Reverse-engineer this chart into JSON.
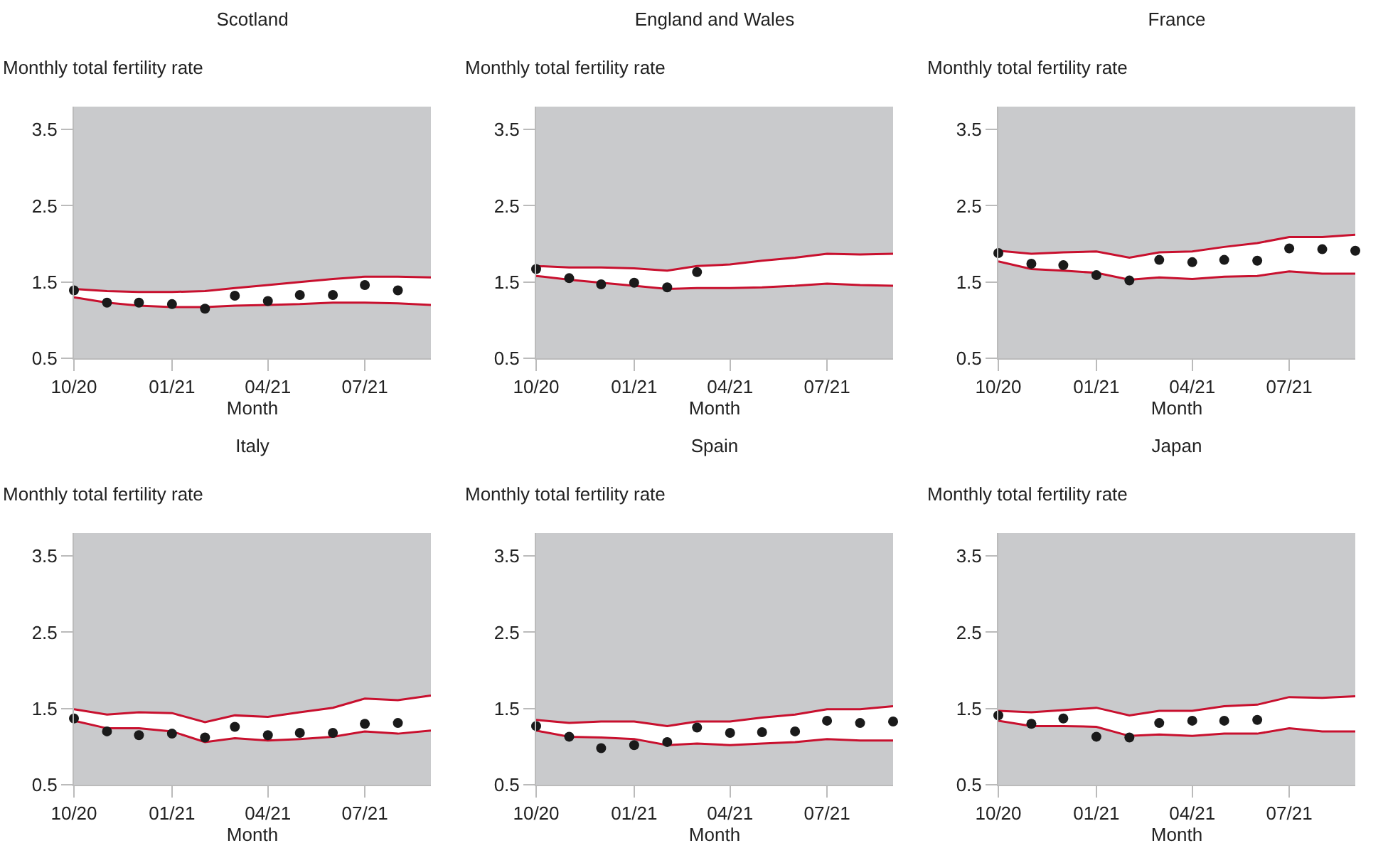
{
  "chart_data": [
    {
      "type": "scatter",
      "title": "Scotland",
      "ylabel": "Monthly total fertility rate",
      "xlabel": "Month",
      "x": [
        "2020-10",
        "2020-11",
        "2020-12",
        "2021-01",
        "2021-02",
        "2021-03",
        "2021-04",
        "2021-05",
        "2021-06",
        "2021-07",
        "2021-08",
        "2021-09"
      ],
      "xlim": [
        "2020-10",
        "2021-09"
      ],
      "xticks": [
        {
          "value": "2020-10",
          "label": "10/20"
        },
        {
          "value": "2021-01",
          "label": "01/21"
        },
        {
          "value": "2021-04",
          "label": "04/21"
        },
        {
          "value": "2021-07",
          "label": "07/21"
        }
      ],
      "ylim": [
        0.5,
        3.8
      ],
      "yticks": [
        0.5,
        1.5,
        2.5,
        3.5
      ],
      "grid": false,
      "series": [
        {
          "color": "#1a1a1a",
          "marker": "circle",
          "values": [
            1.39,
            1.23,
            1.23,
            1.21,
            1.15,
            1.32,
            1.25,
            1.33,
            1.33,
            1.46,
            1.39,
            null
          ],
          "lower": [
            1.3,
            1.23,
            1.19,
            1.17,
            1.17,
            1.19,
            1.2,
            1.21,
            1.23,
            1.23,
            1.22,
            1.2
          ],
          "upper": [
            1.41,
            1.38,
            1.37,
            1.37,
            1.38,
            1.42,
            1.46,
            1.5,
            1.54,
            1.57,
            1.57,
            1.56
          ]
        },
        {
          "type": "line",
          "color": "#c8102e",
          "values": [
            1.3,
            1.23,
            1.19,
            1.17,
            1.17,
            1.19,
            1.2,
            1.21,
            1.23,
            1.23,
            1.22,
            1.2
          ]
        },
        {
          "type": "line",
          "color": "#c8102e",
          "values": [
            1.41,
            1.38,
            1.37,
            1.37,
            1.38,
            1.42,
            1.46,
            1.5,
            1.54,
            1.57,
            1.57,
            1.56
          ]
        }
      ]
    },
    {
      "type": "scatter",
      "title": "England and Wales",
      "ylabel": "Monthly total fertility rate",
      "xlabel": "Month",
      "x": [
        "2020-10",
        "2020-11",
        "2020-12",
        "2021-01",
        "2021-02",
        "2021-03",
        "2021-04",
        "2021-05",
        "2021-06",
        "2021-07",
        "2021-08",
        "2021-09"
      ],
      "xlim": [
        "2020-10",
        "2021-09"
      ],
      "xticks": [
        {
          "value": "2020-10",
          "label": "10/20"
        },
        {
          "value": "2021-01",
          "label": "01/21"
        },
        {
          "value": "2021-04",
          "label": "04/21"
        },
        {
          "value": "2021-07",
          "label": "07/21"
        }
      ],
      "ylim": [
        0.5,
        3.8
      ],
      "yticks": [
        0.5,
        1.5,
        2.5,
        3.5
      ],
      "grid": false,
      "series": [
        {
          "color": "#1a1a1a",
          "marker": "circle",
          "values": [
            1.67,
            1.55,
            1.47,
            1.49,
            1.43,
            1.63,
            null,
            null,
            null,
            null,
            null,
            null
          ],
          "lower": [
            1.58,
            1.53,
            1.49,
            1.45,
            1.41,
            1.42,
            1.42,
            1.43,
            1.45,
            1.48,
            1.46,
            1.45
          ],
          "upper": [
            1.71,
            1.69,
            1.69,
            1.68,
            1.65,
            1.71,
            1.73,
            1.78,
            1.82,
            1.87,
            1.86,
            1.87
          ]
        },
        {
          "type": "line",
          "color": "#c8102e",
          "values": [
            1.58,
            1.53,
            1.49,
            1.45,
            1.41,
            1.42,
            1.42,
            1.43,
            1.45,
            1.48,
            1.46,
            1.45
          ]
        },
        {
          "type": "line",
          "color": "#c8102e",
          "values": [
            1.71,
            1.69,
            1.69,
            1.68,
            1.65,
            1.71,
            1.73,
            1.78,
            1.82,
            1.87,
            1.86,
            1.87
          ]
        }
      ]
    },
    {
      "type": "scatter",
      "title": "France",
      "ylabel": "Monthly total fertility rate",
      "xlabel": "Month",
      "x": [
        "2020-10",
        "2020-11",
        "2020-12",
        "2021-01",
        "2021-02",
        "2021-03",
        "2021-04",
        "2021-05",
        "2021-06",
        "2021-07",
        "2021-08",
        "2021-09"
      ],
      "xlim": [
        "2020-10",
        "2021-09"
      ],
      "xticks": [
        {
          "value": "2020-10",
          "label": "10/20"
        },
        {
          "value": "2021-01",
          "label": "01/21"
        },
        {
          "value": "2021-04",
          "label": "04/21"
        },
        {
          "value": "2021-07",
          "label": "07/21"
        }
      ],
      "ylim": [
        0.5,
        3.8
      ],
      "yticks": [
        0.5,
        1.5,
        2.5,
        3.5
      ],
      "grid": false,
      "series": [
        {
          "color": "#1a1a1a",
          "marker": "circle",
          "values": [
            1.88,
            1.74,
            1.72,
            1.59,
            1.52,
            1.79,
            1.76,
            1.79,
            1.78,
            1.94,
            1.93,
            1.91
          ],
          "lower": [
            1.77,
            1.67,
            1.65,
            1.62,
            1.53,
            1.56,
            1.54,
            1.57,
            1.58,
            1.64,
            1.61,
            1.61
          ],
          "upper": [
            1.91,
            1.87,
            1.89,
            1.9,
            1.82,
            1.89,
            1.9,
            1.96,
            2.01,
            2.09,
            2.09,
            2.12
          ]
        },
        {
          "type": "line",
          "color": "#c8102e",
          "values": [
            1.77,
            1.67,
            1.65,
            1.62,
            1.53,
            1.56,
            1.54,
            1.57,
            1.58,
            1.64,
            1.61,
            1.61
          ]
        },
        {
          "type": "line",
          "color": "#c8102e",
          "values": [
            1.91,
            1.87,
            1.89,
            1.9,
            1.82,
            1.89,
            1.9,
            1.96,
            2.01,
            2.09,
            2.09,
            2.12
          ]
        }
      ]
    },
    {
      "type": "scatter",
      "title": "Italy",
      "ylabel": "Monthly total fertility rate",
      "xlabel": "Month",
      "x": [
        "2020-10",
        "2020-11",
        "2020-12",
        "2021-01",
        "2021-02",
        "2021-03",
        "2021-04",
        "2021-05",
        "2021-06",
        "2021-07",
        "2021-08",
        "2021-09"
      ],
      "xlim": [
        "2020-10",
        "2021-09"
      ],
      "xticks": [
        {
          "value": "2020-10",
          "label": "10/20"
        },
        {
          "value": "2021-01",
          "label": "01/21"
        },
        {
          "value": "2021-04",
          "label": "04/21"
        },
        {
          "value": "2021-07",
          "label": "07/21"
        }
      ],
      "ylim": [
        0.5,
        3.8
      ],
      "yticks": [
        0.5,
        1.5,
        2.5,
        3.5
      ],
      "grid": false,
      "series": [
        {
          "color": "#1a1a1a",
          "marker": "circle",
          "values": [
            1.37,
            1.2,
            1.15,
            1.17,
            1.12,
            1.26,
            1.15,
            1.18,
            1.18,
            1.3,
            1.31,
            null
          ],
          "lower": [
            1.34,
            1.24,
            1.24,
            1.2,
            1.06,
            1.11,
            1.08,
            1.1,
            1.13,
            1.2,
            1.17,
            1.21
          ],
          "upper": [
            1.49,
            1.42,
            1.45,
            1.44,
            1.32,
            1.41,
            1.39,
            1.45,
            1.51,
            1.63,
            1.61,
            1.67
          ]
        },
        {
          "type": "line",
          "color": "#c8102e",
          "values": [
            1.34,
            1.24,
            1.24,
            1.2,
            1.06,
            1.11,
            1.08,
            1.1,
            1.13,
            1.2,
            1.17,
            1.21
          ]
        },
        {
          "type": "line",
          "color": "#c8102e",
          "values": [
            1.49,
            1.42,
            1.45,
            1.44,
            1.32,
            1.41,
            1.39,
            1.45,
            1.51,
            1.63,
            1.61,
            1.67
          ]
        }
      ]
    },
    {
      "type": "scatter",
      "title": "Spain",
      "ylabel": "Monthly total fertility rate",
      "xlabel": "Month",
      "x": [
        "2020-10",
        "2020-11",
        "2020-12",
        "2021-01",
        "2021-02",
        "2021-03",
        "2021-04",
        "2021-05",
        "2021-06",
        "2021-07",
        "2021-08",
        "2021-09"
      ],
      "xlim": [
        "2020-10",
        "2021-09"
      ],
      "xticks": [
        {
          "value": "2020-10",
          "label": "10/20"
        },
        {
          "value": "2021-01",
          "label": "01/21"
        },
        {
          "value": "2021-04",
          "label": "04/21"
        },
        {
          "value": "2021-07",
          "label": "07/21"
        }
      ],
      "ylim": [
        0.5,
        3.8
      ],
      "yticks": [
        0.5,
        1.5,
        2.5,
        3.5
      ],
      "grid": false,
      "series": [
        {
          "color": "#1a1a1a",
          "marker": "circle",
          "values": [
            1.27,
            1.13,
            0.98,
            1.02,
            1.06,
            1.25,
            1.18,
            1.19,
            1.2,
            1.34,
            1.31,
            1.33
          ],
          "lower": [
            1.21,
            1.13,
            1.12,
            1.1,
            1.02,
            1.04,
            1.02,
            1.04,
            1.06,
            1.1,
            1.08,
            1.08
          ],
          "upper": [
            1.35,
            1.31,
            1.33,
            1.33,
            1.27,
            1.33,
            1.33,
            1.38,
            1.42,
            1.49,
            1.49,
            1.53
          ]
        },
        {
          "type": "line",
          "color": "#c8102e",
          "values": [
            1.21,
            1.13,
            1.12,
            1.1,
            1.02,
            1.04,
            1.02,
            1.04,
            1.06,
            1.1,
            1.08,
            1.08
          ]
        },
        {
          "type": "line",
          "color": "#c8102e",
          "values": [
            1.35,
            1.31,
            1.33,
            1.33,
            1.27,
            1.33,
            1.33,
            1.38,
            1.42,
            1.49,
            1.49,
            1.53
          ]
        }
      ]
    },
    {
      "type": "scatter",
      "title": "Japan",
      "ylabel": "Monthly total fertility rate",
      "xlabel": "Month",
      "x": [
        "2020-10",
        "2020-11",
        "2020-12",
        "2021-01",
        "2021-02",
        "2021-03",
        "2021-04",
        "2021-05",
        "2021-06",
        "2021-07",
        "2021-08",
        "2021-09"
      ],
      "xlim": [
        "2020-10",
        "2021-09"
      ],
      "xticks": [
        {
          "value": "2020-10",
          "label": "10/20"
        },
        {
          "value": "2021-01",
          "label": "01/21"
        },
        {
          "value": "2021-04",
          "label": "04/21"
        },
        {
          "value": "2021-07",
          "label": "07/21"
        }
      ],
      "ylim": [
        0.5,
        3.8
      ],
      "yticks": [
        0.5,
        1.5,
        2.5,
        3.5
      ],
      "grid": false,
      "series": [
        {
          "color": "#1a1a1a",
          "marker": "circle",
          "values": [
            1.41,
            1.3,
            1.37,
            1.13,
            1.12,
            1.31,
            1.34,
            1.34,
            1.35,
            null,
            null,
            null
          ],
          "lower": [
            1.34,
            1.27,
            1.27,
            1.26,
            1.14,
            1.16,
            1.14,
            1.17,
            1.17,
            1.24,
            1.2,
            1.2
          ],
          "upper": [
            1.47,
            1.45,
            1.48,
            1.51,
            1.41,
            1.47,
            1.47,
            1.53,
            1.55,
            1.65,
            1.64,
            1.66
          ]
        },
        {
          "type": "line",
          "color": "#c8102e",
          "values": [
            1.34,
            1.27,
            1.27,
            1.26,
            1.14,
            1.16,
            1.14,
            1.17,
            1.17,
            1.24,
            1.2,
            1.2
          ]
        },
        {
          "type": "line",
          "color": "#c8102e",
          "values": [
            1.47,
            1.45,
            1.48,
            1.51,
            1.41,
            1.47,
            1.47,
            1.53,
            1.55,
            1.65,
            1.64,
            1.66
          ]
        }
      ]
    }
  ]
}
